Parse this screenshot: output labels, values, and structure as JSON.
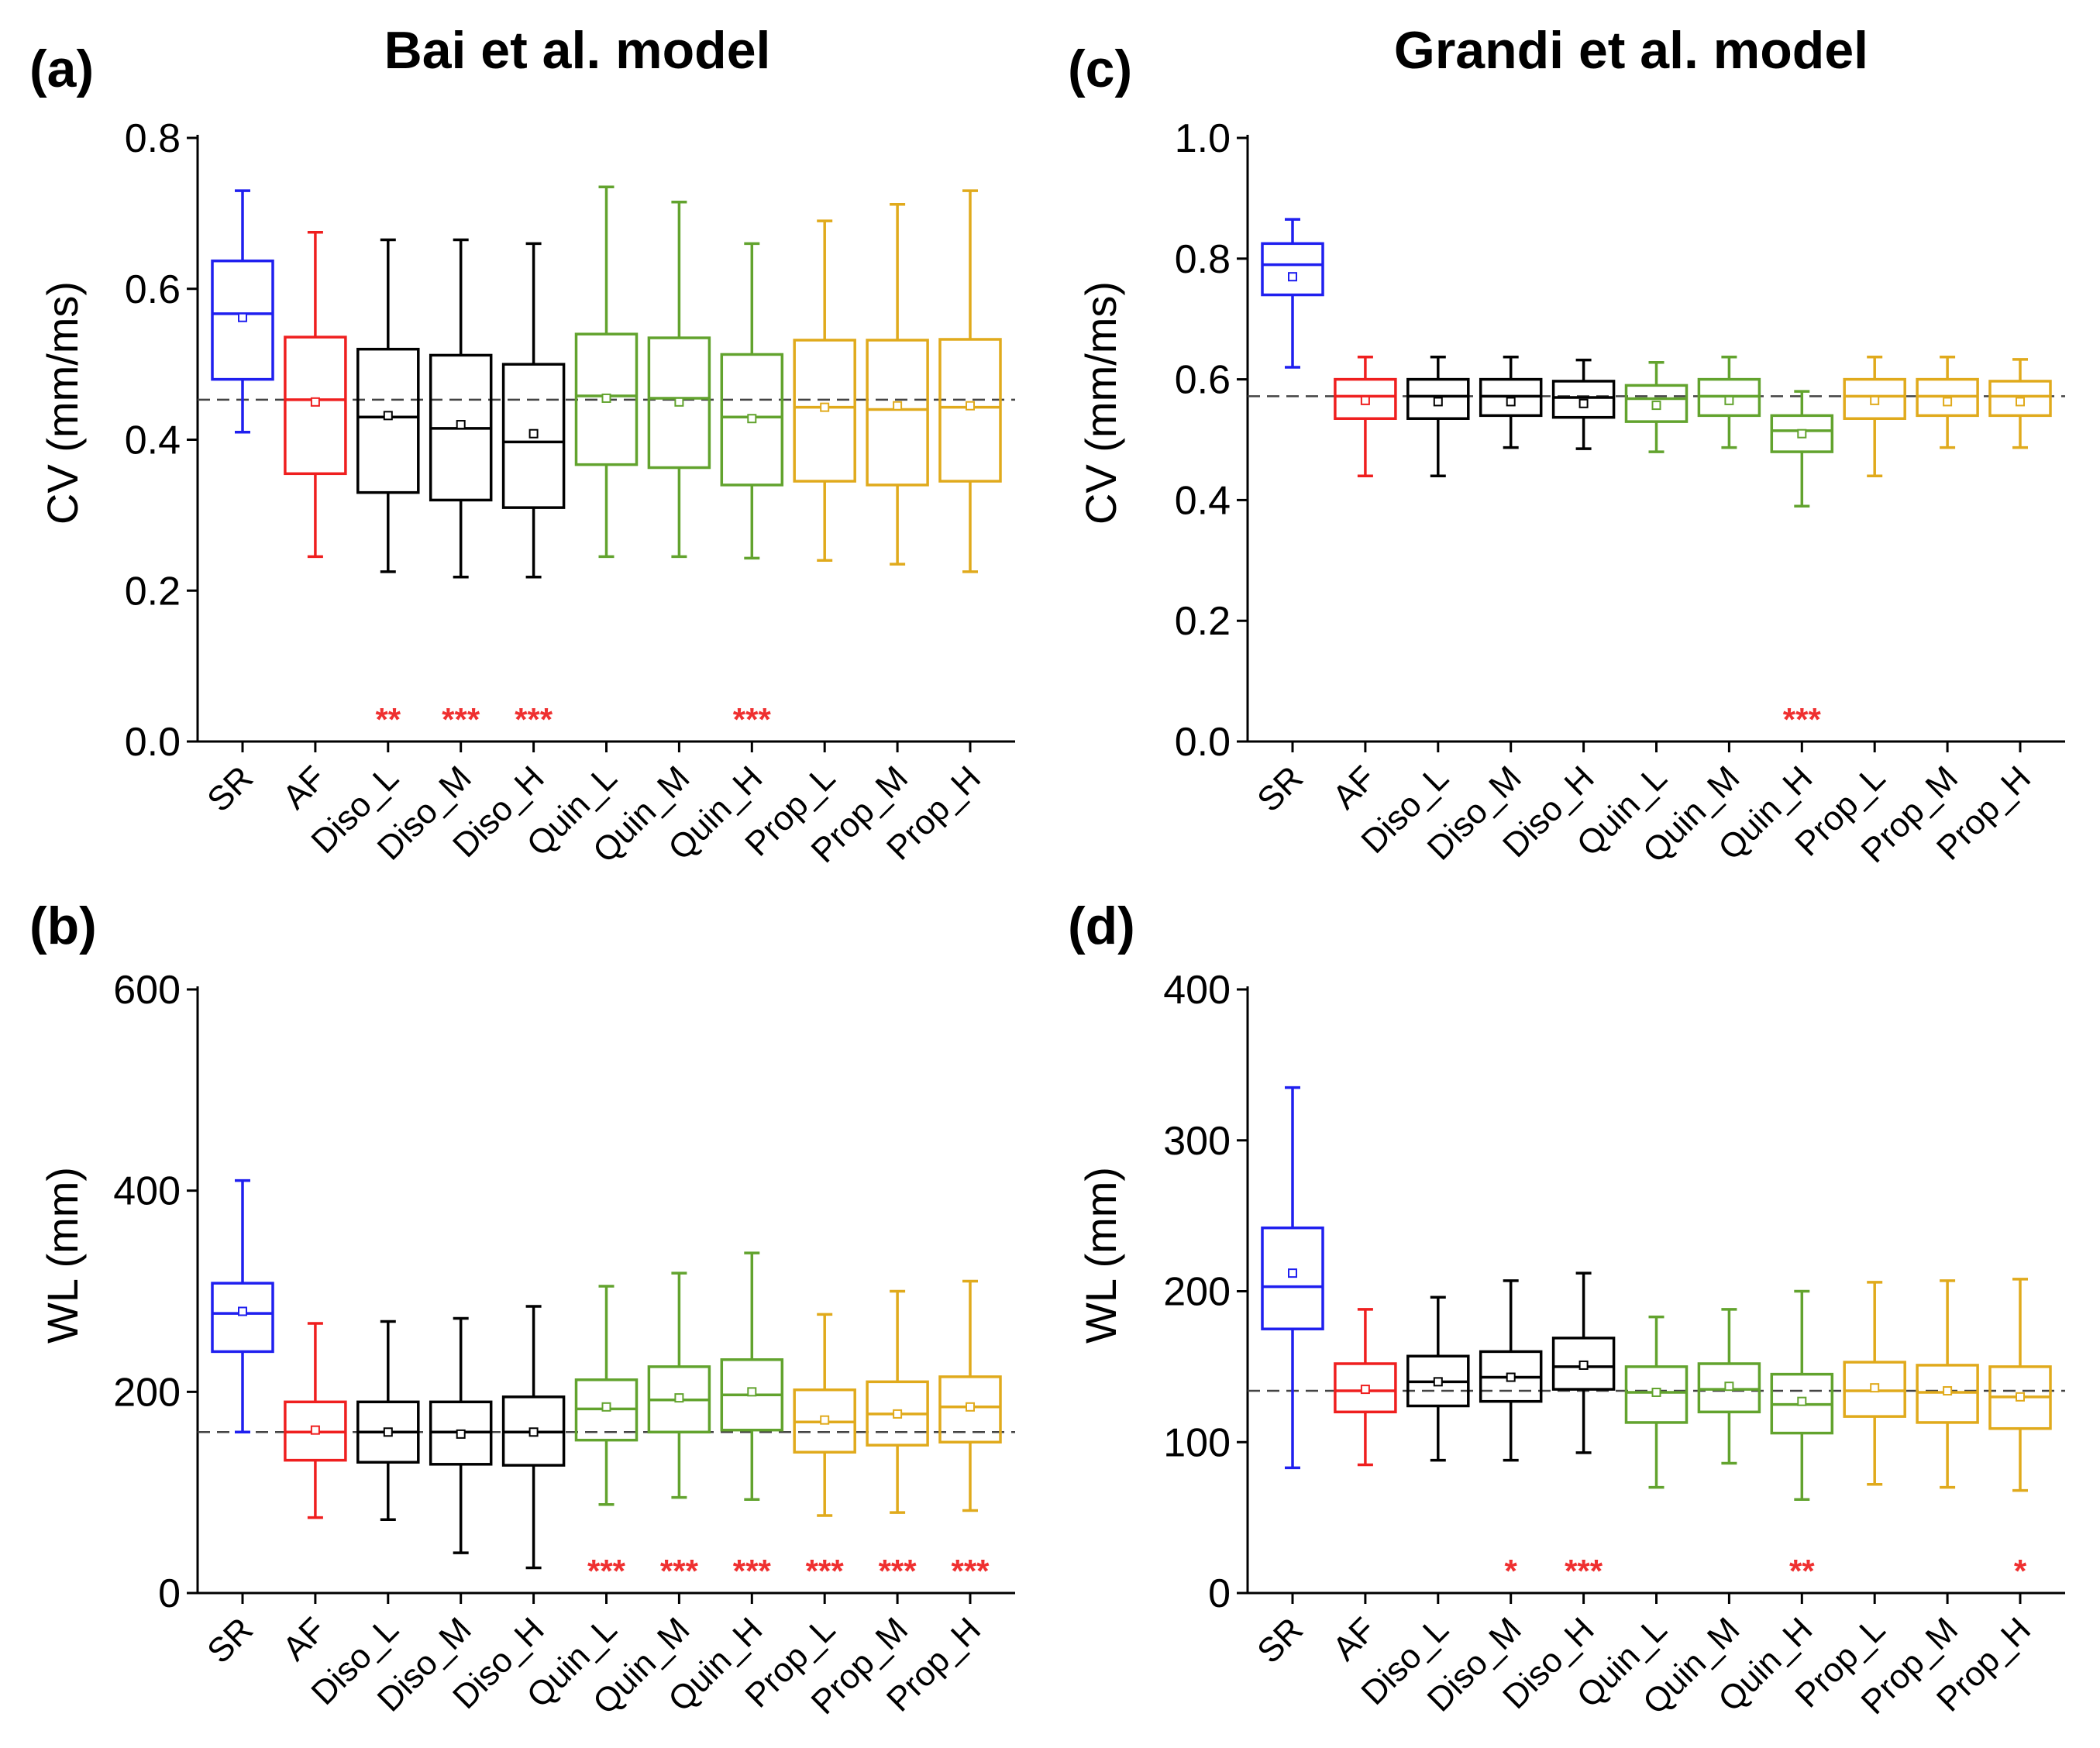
{
  "colors": {
    "SR": "#1f1fef",
    "AF": "#ef1f1f",
    "Diso": "#000000",
    "Quin": "#62a32e",
    "Prop": "#e0aa1c",
    "sig": "#ef3030",
    "reference_line": "#444444"
  },
  "chart_data": [
    {
      "panel": "(a)",
      "title": "Bai et al. model",
      "type": "box",
      "ylabel": "CV (mm/ms)",
      "ylim": [
        0,
        0.8
      ],
      "yticks": [
        0.0,
        0.2,
        0.4,
        0.6,
        0.8
      ],
      "ytick_labels": [
        "0.0",
        "0.2",
        "0.4",
        "0.6",
        "0.8"
      ],
      "categories": [
        "SR",
        "AF",
        "Diso_L",
        "Diso_M",
        "Diso_H",
        "Quin_L",
        "Quin_M",
        "Quin_H",
        "Prop_L",
        "Prop_M",
        "Prop_H"
      ],
      "groups": [
        "SR",
        "AF",
        "Diso",
        "Diso",
        "Diso",
        "Quin",
        "Quin",
        "Quin",
        "Prop",
        "Prop",
        "Prop"
      ],
      "reference_line": 0.453,
      "boxes": [
        {
          "whislo": 0.41,
          "q1": 0.48,
          "med": 0.567,
          "q3": 0.637,
          "whishi": 0.73,
          "mean": 0.562
        },
        {
          "whislo": 0.245,
          "q1": 0.355,
          "med": 0.453,
          "q3": 0.536,
          "whishi": 0.675,
          "mean": 0.45
        },
        {
          "whislo": 0.225,
          "q1": 0.33,
          "med": 0.43,
          "q3": 0.52,
          "whishi": 0.665,
          "mean": 0.432
        },
        {
          "whislo": 0.218,
          "q1": 0.32,
          "med": 0.415,
          "q3": 0.512,
          "whishi": 0.665,
          "mean": 0.42
        },
        {
          "whislo": 0.218,
          "q1": 0.31,
          "med": 0.397,
          "q3": 0.5,
          "whishi": 0.66,
          "mean": 0.408
        },
        {
          "whislo": 0.245,
          "q1": 0.367,
          "med": 0.458,
          "q3": 0.54,
          "whishi": 0.735,
          "mean": 0.455
        },
        {
          "whislo": 0.245,
          "q1": 0.363,
          "med": 0.455,
          "q3": 0.535,
          "whishi": 0.715,
          "mean": 0.45
        },
        {
          "whislo": 0.243,
          "q1": 0.34,
          "med": 0.43,
          "q3": 0.513,
          "whishi": 0.66,
          "mean": 0.428
        },
        {
          "whislo": 0.24,
          "q1": 0.345,
          "med": 0.443,
          "q3": 0.532,
          "whishi": 0.69,
          "mean": 0.443
        },
        {
          "whislo": 0.235,
          "q1": 0.34,
          "med": 0.44,
          "q3": 0.532,
          "whishi": 0.712,
          "mean": 0.445
        },
        {
          "whislo": 0.225,
          "q1": 0.345,
          "med": 0.443,
          "q3": 0.533,
          "whishi": 0.73,
          "mean": 0.445
        }
      ],
      "significance": [
        "",
        "",
        "**",
        "***",
        "***",
        "",
        "",
        "***",
        "",
        "",
        ""
      ]
    },
    {
      "panel": "(b)",
      "title": "",
      "type": "box",
      "ylabel": "WL (mm)",
      "ylim": [
        0,
        600
      ],
      "yticks": [
        0,
        200,
        400,
        600
      ],
      "ytick_labels": [
        "0",
        "200",
        "400",
        "600"
      ],
      "categories": [
        "SR",
        "AF",
        "Diso_L",
        "Diso_M",
        "Diso_H",
        "Quin_L",
        "Quin_M",
        "Quin_H",
        "Prop_L",
        "Prop_M",
        "Prop_H"
      ],
      "groups": [
        "SR",
        "AF",
        "Diso",
        "Diso",
        "Diso",
        "Quin",
        "Quin",
        "Quin",
        "Prop",
        "Prop",
        "Prop"
      ],
      "reference_line": 160,
      "boxes": [
        {
          "whislo": 160,
          "q1": 240,
          "med": 278,
          "q3": 308,
          "whishi": 410,
          "mean": 280
        },
        {
          "whislo": 75,
          "q1": 132,
          "med": 160,
          "q3": 190,
          "whishi": 268,
          "mean": 162
        },
        {
          "whislo": 73,
          "q1": 130,
          "med": 160,
          "q3": 190,
          "whishi": 270,
          "mean": 160
        },
        {
          "whislo": 40,
          "q1": 128,
          "med": 160,
          "q3": 190,
          "whishi": 273,
          "mean": 158
        },
        {
          "whislo": 25,
          "q1": 127,
          "med": 160,
          "q3": 195,
          "whishi": 285,
          "mean": 160
        },
        {
          "whislo": 88,
          "q1": 152,
          "med": 183,
          "q3": 212,
          "whishi": 305,
          "mean": 185
        },
        {
          "whislo": 95,
          "q1": 160,
          "med": 192,
          "q3": 225,
          "whishi": 318,
          "mean": 194
        },
        {
          "whislo": 93,
          "q1": 162,
          "med": 197,
          "q3": 232,
          "whishi": 338,
          "mean": 200
        },
        {
          "whislo": 77,
          "q1": 140,
          "med": 170,
          "q3": 202,
          "whishi": 277,
          "mean": 172
        },
        {
          "whislo": 80,
          "q1": 147,
          "med": 178,
          "q3": 210,
          "whishi": 300,
          "mean": 178
        },
        {
          "whislo": 82,
          "q1": 150,
          "med": 185,
          "q3": 215,
          "whishi": 310,
          "mean": 185
        }
      ],
      "significance": [
        "",
        "",
        "",
        "",
        "",
        "***",
        "***",
        "***",
        "***",
        "***",
        "***"
      ]
    },
    {
      "panel": "(c)",
      "title": "Grandi et al. model",
      "type": "box",
      "ylabel": "CV (mm/ms)",
      "ylim": [
        0,
        1.0
      ],
      "yticks": [
        0.0,
        0.2,
        0.4,
        0.6,
        0.8,
        1.0
      ],
      "ytick_labels": [
        "0.0",
        "0.2",
        "0.4",
        "0.6",
        "0.8",
        "1.0"
      ],
      "categories": [
        "SR",
        "AF",
        "Diso_L",
        "Diso_M",
        "Diso_H",
        "Quin_L",
        "Quin_M",
        "Quin_H",
        "Prop_L",
        "Prop_M",
        "Prop_H"
      ],
      "groups": [
        "SR",
        "AF",
        "Diso",
        "Diso",
        "Diso",
        "Quin",
        "Quin",
        "Quin",
        "Prop",
        "Prop",
        "Prop"
      ],
      "reference_line": 0.572,
      "boxes": [
        {
          "whislo": 0.62,
          "q1": 0.74,
          "med": 0.79,
          "q3": 0.825,
          "whishi": 0.865,
          "mean": 0.77
        },
        {
          "whislo": 0.44,
          "q1": 0.535,
          "med": 0.572,
          "q3": 0.6,
          "whishi": 0.637,
          "mean": 0.565
        },
        {
          "whislo": 0.44,
          "q1": 0.535,
          "med": 0.572,
          "q3": 0.6,
          "whishi": 0.637,
          "mean": 0.563
        },
        {
          "whislo": 0.487,
          "q1": 0.54,
          "med": 0.572,
          "q3": 0.6,
          "whishi": 0.637,
          "mean": 0.563
        },
        {
          "whislo": 0.485,
          "q1": 0.537,
          "med": 0.57,
          "q3": 0.597,
          "whishi": 0.632,
          "mean": 0.56
        },
        {
          "whislo": 0.48,
          "q1": 0.53,
          "med": 0.568,
          "q3": 0.59,
          "whishi": 0.628,
          "mean": 0.557
        },
        {
          "whislo": 0.487,
          "q1": 0.54,
          "med": 0.572,
          "q3": 0.6,
          "whishi": 0.637,
          "mean": 0.565
        },
        {
          "whislo": 0.39,
          "q1": 0.48,
          "med": 0.515,
          "q3": 0.54,
          "whishi": 0.58,
          "mean": 0.51
        },
        {
          "whislo": 0.44,
          "q1": 0.535,
          "med": 0.572,
          "q3": 0.6,
          "whishi": 0.637,
          "mean": 0.565
        },
        {
          "whislo": 0.487,
          "q1": 0.54,
          "med": 0.572,
          "q3": 0.6,
          "whishi": 0.637,
          "mean": 0.563
        },
        {
          "whislo": 0.487,
          "q1": 0.54,
          "med": 0.572,
          "q3": 0.597,
          "whishi": 0.633,
          "mean": 0.563
        }
      ],
      "significance": [
        "",
        "",
        "",
        "",
        "",
        "",
        "",
        "***",
        "",
        "",
        ""
      ]
    },
    {
      "panel": "(d)",
      "title": "",
      "type": "box",
      "ylabel": "WL (mm)",
      "ylim": [
        0,
        400
      ],
      "yticks": [
        0,
        100,
        200,
        300,
        400
      ],
      "ytick_labels": [
        "0",
        "100",
        "200",
        "300",
        "400"
      ],
      "categories": [
        "SR",
        "AF",
        "Diso_L",
        "Diso_M",
        "Diso_H",
        "Quin_L",
        "Quin_M",
        "Quin_H",
        "Prop_L",
        "Prop_M",
        "Prop_H"
      ],
      "groups": [
        "SR",
        "AF",
        "Diso",
        "Diso",
        "Diso",
        "Quin",
        "Quin",
        "Quin",
        "Prop",
        "Prop",
        "Prop"
      ],
      "reference_line": 134,
      "boxes": [
        {
          "whislo": 83,
          "q1": 175,
          "med": 203,
          "q3": 242,
          "whishi": 335,
          "mean": 212
        },
        {
          "whislo": 85,
          "q1": 120,
          "med": 134,
          "q3": 152,
          "whishi": 188,
          "mean": 135
        },
        {
          "whislo": 88,
          "q1": 124,
          "med": 140,
          "q3": 157,
          "whishi": 196,
          "mean": 140
        },
        {
          "whislo": 88,
          "q1": 127,
          "med": 143,
          "q3": 160,
          "whishi": 207,
          "mean": 143
        },
        {
          "whislo": 93,
          "q1": 135,
          "med": 150,
          "q3": 169,
          "whishi": 212,
          "mean": 151
        },
        {
          "whislo": 70,
          "q1": 113,
          "med": 133,
          "q3": 150,
          "whishi": 183,
          "mean": 133
        },
        {
          "whislo": 86,
          "q1": 120,
          "med": 135,
          "q3": 152,
          "whishi": 188,
          "mean": 137
        },
        {
          "whislo": 62,
          "q1": 106,
          "med": 125,
          "q3": 145,
          "whishi": 200,
          "mean": 127
        },
        {
          "whislo": 72,
          "q1": 117,
          "med": 134,
          "q3": 153,
          "whishi": 206,
          "mean": 136
        },
        {
          "whislo": 70,
          "q1": 113,
          "med": 133,
          "q3": 151,
          "whishi": 207,
          "mean": 134
        },
        {
          "whislo": 68,
          "q1": 109,
          "med": 130,
          "q3": 150,
          "whishi": 208,
          "mean": 130
        }
      ],
      "significance": [
        "",
        "",
        "",
        "*",
        "***",
        "",
        "",
        "**",
        "",
        "",
        "*"
      ]
    }
  ]
}
